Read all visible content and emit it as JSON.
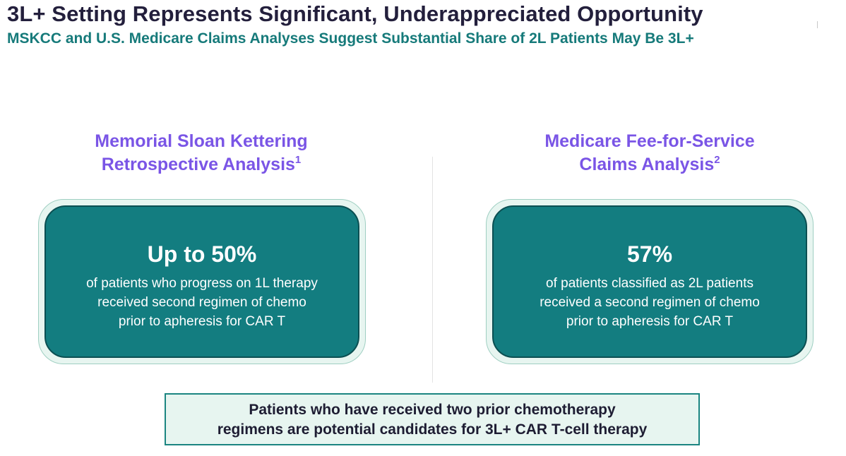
{
  "header": {
    "title": "3L+ Setting Represents Significant, Underappreciated Opportunity",
    "subtitle": "MSKCC and U.S. Medicare Claims Analyses Suggest Substantial Share of 2L Patients May Be 3L+"
  },
  "left_column": {
    "heading_line1": "Memorial Sloan Kettering",
    "heading_line2": "Retrospective Analysis",
    "footnote": "1",
    "stat": "Up to 50%",
    "desc_lines": [
      "of patients who progress on 1L therapy",
      "received second regimen of chemo",
      "prior to apheresis for CAR T"
    ]
  },
  "right_column": {
    "heading_line1": "Medicare Fee-for-Service",
    "heading_line2": "Claims Analysis",
    "footnote": "2",
    "stat": "57%",
    "desc_lines": [
      "of patients classified as 2L patients",
      "received a second regimen of chemo",
      "prior to apheresis for CAR T"
    ]
  },
  "conclusion": {
    "lines": [
      "Patients who have received two prior chemotherapy",
      "regimens are potential candidates for 3L+ CAR T-cell therapy"
    ]
  },
  "colors": {
    "title": "#231f3c",
    "subtitle": "#167a7a",
    "heading": "#7a55e6",
    "card_fill": "#137d80",
    "card_outer": "#e7f5f0",
    "conclusion_border": "#1b8581"
  }
}
